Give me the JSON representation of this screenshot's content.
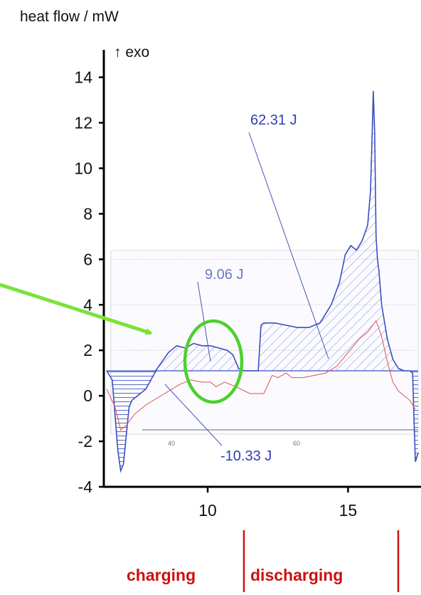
{
  "chart_data": {
    "type": "line",
    "ylabel": "heat flow / mW",
    "exo_label": "↑ exo",
    "ylim": [
      -4,
      14.8
    ],
    "xlim": [
      6.3,
      17.6
    ],
    "y_ticks": [
      "14",
      "12",
      "10",
      "8",
      "6",
      "4",
      "2",
      "0",
      "-2",
      "-4"
    ],
    "x_ticks": [
      "10",
      "15"
    ],
    "inner_ticks": [
      "40",
      "60"
    ],
    "annotations": {
      "discharge_area": "62.31 J",
      "charge_area": "9.06 J",
      "negative_area": "-10.33 J"
    },
    "phases": [
      "charging",
      "discharging"
    ],
    "colors": {
      "heat_flow": "#3a4fc0",
      "reference": "#e06060",
      "hatch": "#6b7cc8",
      "phase_text": "#cc1111",
      "highlight": "#4cd12e",
      "arrow": "#7be23a"
    },
    "series": [
      {
        "x": [
          6.4,
          6.6,
          6.8,
          6.9,
          7.0,
          7.2,
          7.3,
          7.5,
          7.8,
          8.2,
          8.6,
          8.9,
          9.2,
          9.5,
          9.8,
          10.1,
          10.4,
          10.7,
          10.9,
          11.1,
          11.3,
          11.6,
          11.8,
          11.9,
          12.0,
          12.4,
          12.8,
          13.2,
          13.6,
          14.0,
          14.4,
          14.7,
          14.9,
          15.1,
          15.3,
          15.5,
          15.7,
          15.8,
          15.85,
          15.9,
          15.95,
          16.0,
          16.05,
          16.1,
          16.2,
          16.4,
          16.6,
          16.8,
          17.0,
          17.2,
          17.3,
          17.35,
          17.4,
          17.5
        ],
        "y": [
          1.1,
          0.7,
          -2.4,
          -3.3,
          -3.0,
          -0.5,
          -0.2,
          0.0,
          0.3,
          1.2,
          1.9,
          2.2,
          2.1,
          2.3,
          2.2,
          2.2,
          2.1,
          2.0,
          1.8,
          1.2,
          1.1,
          1.1,
          1.1,
          3.1,
          3.2,
          3.2,
          3.1,
          3.0,
          3.0,
          3.2,
          4.0,
          5.0,
          6.2,
          6.6,
          6.4,
          6.8,
          7.5,
          9.0,
          11.0,
          13.4,
          11.5,
          7.0,
          6.0,
          5.5,
          4.0,
          2.5,
          1.6,
          1.2,
          1.1,
          1.1,
          1.0,
          -1.0,
          -2.9,
          -2.5
        ]
      },
      {
        "x": [
          6.4,
          6.7,
          6.9,
          7.1,
          7.4,
          7.8,
          8.2,
          8.6,
          9.0,
          9.4,
          9.8,
          10.1,
          10.3,
          10.6,
          11.0,
          11.5,
          12.0,
          12.3,
          12.5,
          12.8,
          13.0,
          13.4,
          13.8,
          14.2,
          14.6,
          15.0,
          15.4,
          15.7,
          16.0,
          16.2,
          16.4,
          16.6,
          16.8,
          17.0,
          17.2,
          17.4
        ],
        "y": [
          0.3,
          -0.5,
          -1.5,
          -1.3,
          -0.8,
          -0.4,
          -0.1,
          0.2,
          0.5,
          0.7,
          0.6,
          0.6,
          0.4,
          0.6,
          0.4,
          0.1,
          0.1,
          0.9,
          0.8,
          1.0,
          0.8,
          0.8,
          0.9,
          1.0,
          1.3,
          1.9,
          2.5,
          2.8,
          3.3,
          2.6,
          1.5,
          0.6,
          0.2,
          0.0,
          -0.2,
          -0.6
        ]
      }
    ]
  }
}
